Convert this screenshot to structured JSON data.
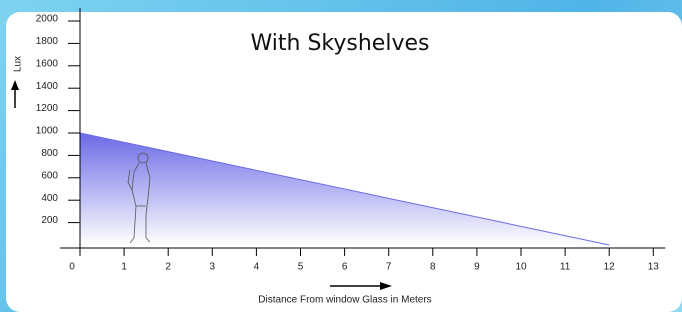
{
  "chart_data": {
    "type": "area",
    "title": "With Skyshelves",
    "x_label": "Distance From window Glass in Meters",
    "y_label": "Lux",
    "x": [
      0,
      12
    ],
    "values": [
      1000,
      0
    ],
    "color": "#6a6ae6",
    "xlim": [
      0,
      13
    ],
    "xticks": [
      0,
      1,
      2,
      3,
      4,
      5,
      6,
      7,
      8,
      9,
      10,
      11,
      12,
      13
    ],
    "ylim": [
      0,
      2000
    ],
    "yticks": [
      200,
      400,
      600,
      800,
      1000,
      1200,
      1400,
      1600,
      1800,
      2000
    ]
  }
}
